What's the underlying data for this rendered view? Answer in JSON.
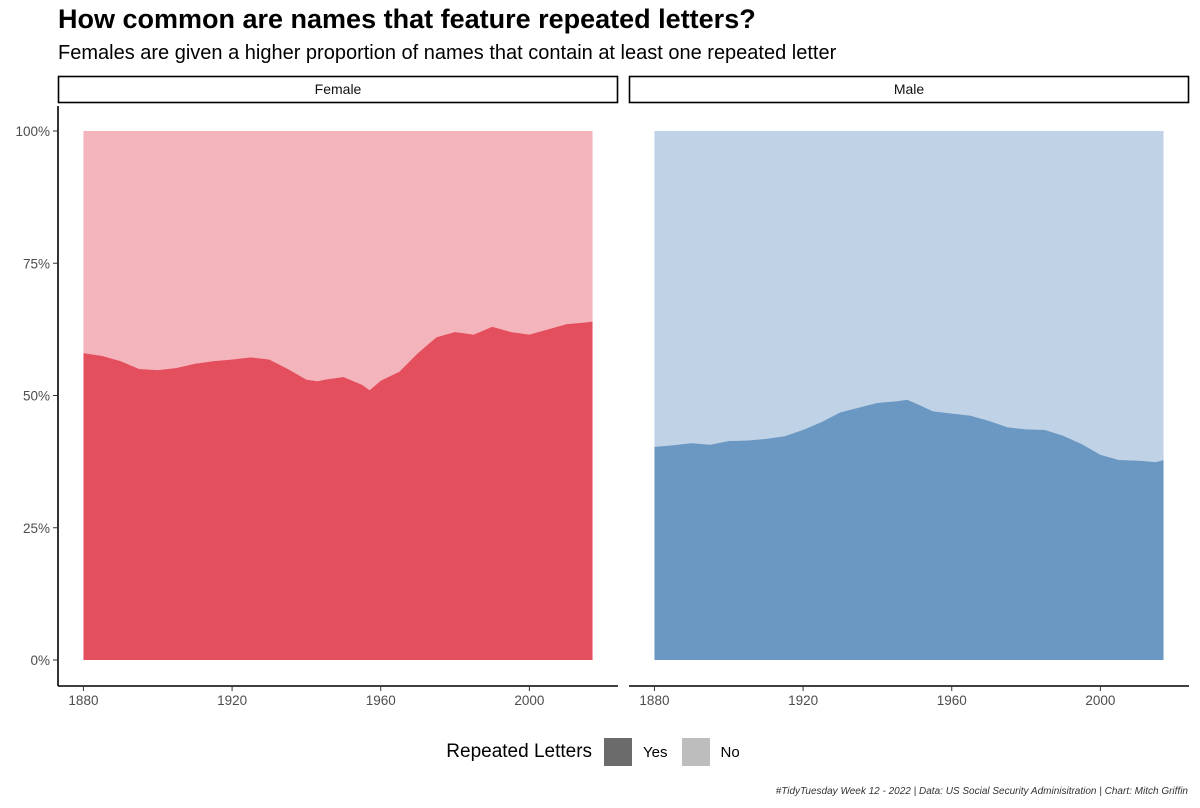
{
  "title": "How common are names that feature repeated letters?",
  "subtitle": "Females are given a higher proportion of names that contain at least one repeated letter",
  "caption": "#TidyTuesday Week 12 - 2022 | Data: US Social Security Adminisitration | Chart: Mitch Griffin",
  "legend": {
    "title": "Repeated Letters",
    "items": [
      {
        "label": "Yes",
        "color": "#6b6b6b"
      },
      {
        "label": "No",
        "color": "#bdbdbd"
      }
    ]
  },
  "chart_data": [
    {
      "type": "area",
      "facet": "Female",
      "stacked": true,
      "x": [
        1880,
        1885,
        1890,
        1895,
        1900,
        1905,
        1910,
        1915,
        1920,
        1925,
        1930,
        1935,
        1940,
        1943,
        1945,
        1950,
        1955,
        1957,
        1960,
        1965,
        1970,
        1975,
        1980,
        1985,
        1990,
        1995,
        2000,
        2005,
        2010,
        2015,
        2017
      ],
      "series": [
        {
          "name": "Yes",
          "color": "#e44f5e",
          "values": [
            58,
            57.5,
            56.5,
            55,
            54.8,
            55.2,
            56,
            56.5,
            56.8,
            57.2,
            56.8,
            55,
            53,
            52.7,
            53,
            53.5,
            52,
            51,
            52.8,
            54.5,
            58,
            61,
            62,
            61.5,
            63,
            62,
            61.5,
            62.5,
            63.5,
            63.8,
            64
          ]
        },
        {
          "name": "No",
          "color": "#f4b4bc",
          "values": [
            42,
            42.5,
            43.5,
            45,
            45.2,
            44.8,
            44,
            43.5,
            43.2,
            42.8,
            43.2,
            45,
            47,
            47.3,
            47,
            46.5,
            48,
            49,
            47.2,
            45.5,
            42,
            39,
            38,
            38.5,
            37,
            38,
            38.5,
            37.5,
            36.5,
            36.2,
            36
          ]
        }
      ],
      "xlim": [
        1880,
        2017
      ],
      "ylim": [
        0,
        100
      ],
      "x_ticks": [
        1880,
        1920,
        1960,
        2000
      ],
      "y_ticks": [
        "0%",
        "25%",
        "50%",
        "75%",
        "100%"
      ]
    },
    {
      "type": "area",
      "facet": "Male",
      "stacked": true,
      "x": [
        1880,
        1885,
        1890,
        1895,
        1900,
        1905,
        1910,
        1915,
        1920,
        1925,
        1930,
        1935,
        1940,
        1945,
        1948,
        1950,
        1955,
        1960,
        1965,
        1970,
        1975,
        1980,
        1985,
        1990,
        1995,
        2000,
        2005,
        2010,
        2015,
        2017
      ],
      "series": [
        {
          "name": "Yes",
          "color": "#6b97c3",
          "values": [
            40.3,
            40.6,
            41,
            40.7,
            41.4,
            41.5,
            41.8,
            42.3,
            43.5,
            45,
            46.8,
            47.7,
            48.6,
            48.9,
            49.2,
            48.6,
            47,
            46.6,
            46.2,
            45.2,
            44,
            43.6,
            43.5,
            42.4,
            40.8,
            38.8,
            37.8,
            37.7,
            37.4,
            37.8
          ]
        },
        {
          "name": "No",
          "color": "#c0d2e6",
          "values": [
            59.7,
            59.4,
            59,
            59.3,
            58.6,
            58.5,
            58.2,
            57.7,
            56.5,
            55,
            53.2,
            52.3,
            51.4,
            51.1,
            50.8,
            51.4,
            53,
            53.4,
            53.8,
            54.8,
            56,
            56.4,
            56.5,
            57.6,
            59.2,
            61.2,
            62.2,
            62.3,
            62.6,
            62.2
          ]
        }
      ],
      "xlim": [
        1880,
        2017
      ],
      "ylim": [
        0,
        100
      ],
      "x_ticks": [
        1880,
        1920,
        1960,
        2000
      ],
      "y_ticks": [
        "0%",
        "25%",
        "50%",
        "75%",
        "100%"
      ]
    }
  ]
}
